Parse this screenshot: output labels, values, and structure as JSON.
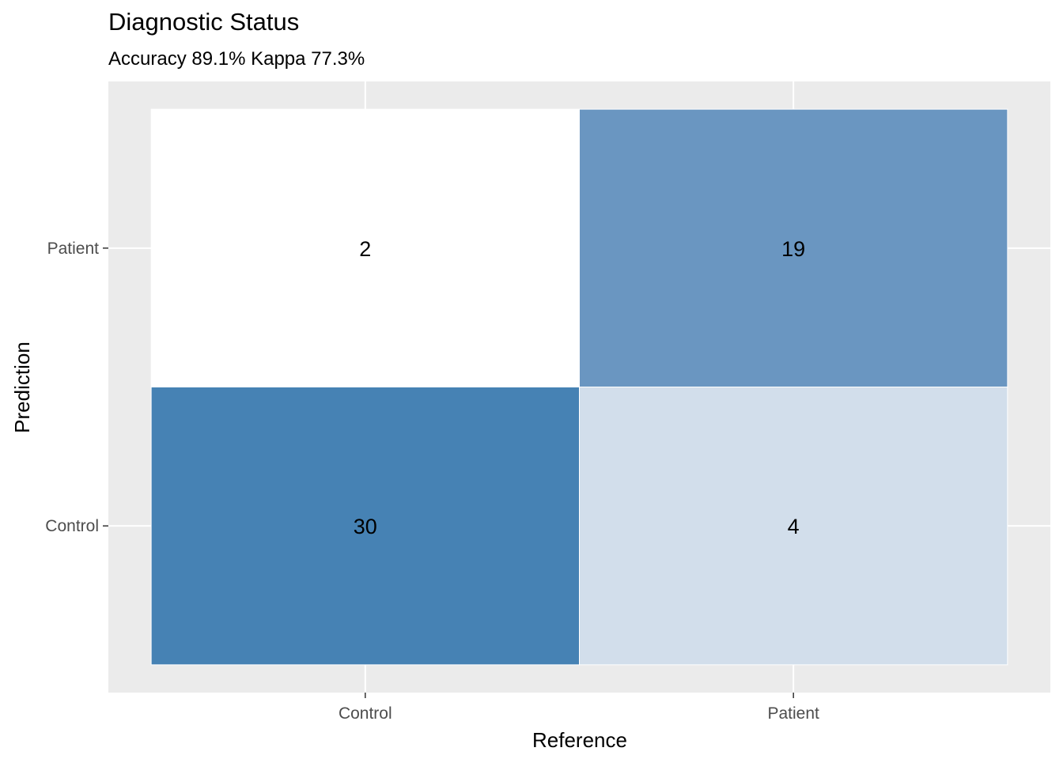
{
  "chart_data": {
    "type": "heatmap",
    "title": "Diagnostic Status",
    "subtitle": "Accuracy 89.1% Kappa 77.3%",
    "xlabel": "Reference",
    "ylabel": "Prediction",
    "x_categories": [
      "Control",
      "Patient"
    ],
    "y_categories": [
      "Control",
      "Patient"
    ],
    "cells": [
      {
        "reference": "Control",
        "prediction": "Patient",
        "value": 2,
        "color": "#ffffff"
      },
      {
        "reference": "Patient",
        "prediction": "Patient",
        "value": 19,
        "color": "#6a96c1"
      },
      {
        "reference": "Control",
        "prediction": "Control",
        "value": 30,
        "color": "#4682b4"
      },
      {
        "reference": "Patient",
        "prediction": "Control",
        "value": 4,
        "color": "#d2deeb"
      }
    ],
    "grid": true,
    "panel_background": "#ebebeb",
    "fill_low": "#ffffff",
    "fill_high": "#4682b4"
  }
}
